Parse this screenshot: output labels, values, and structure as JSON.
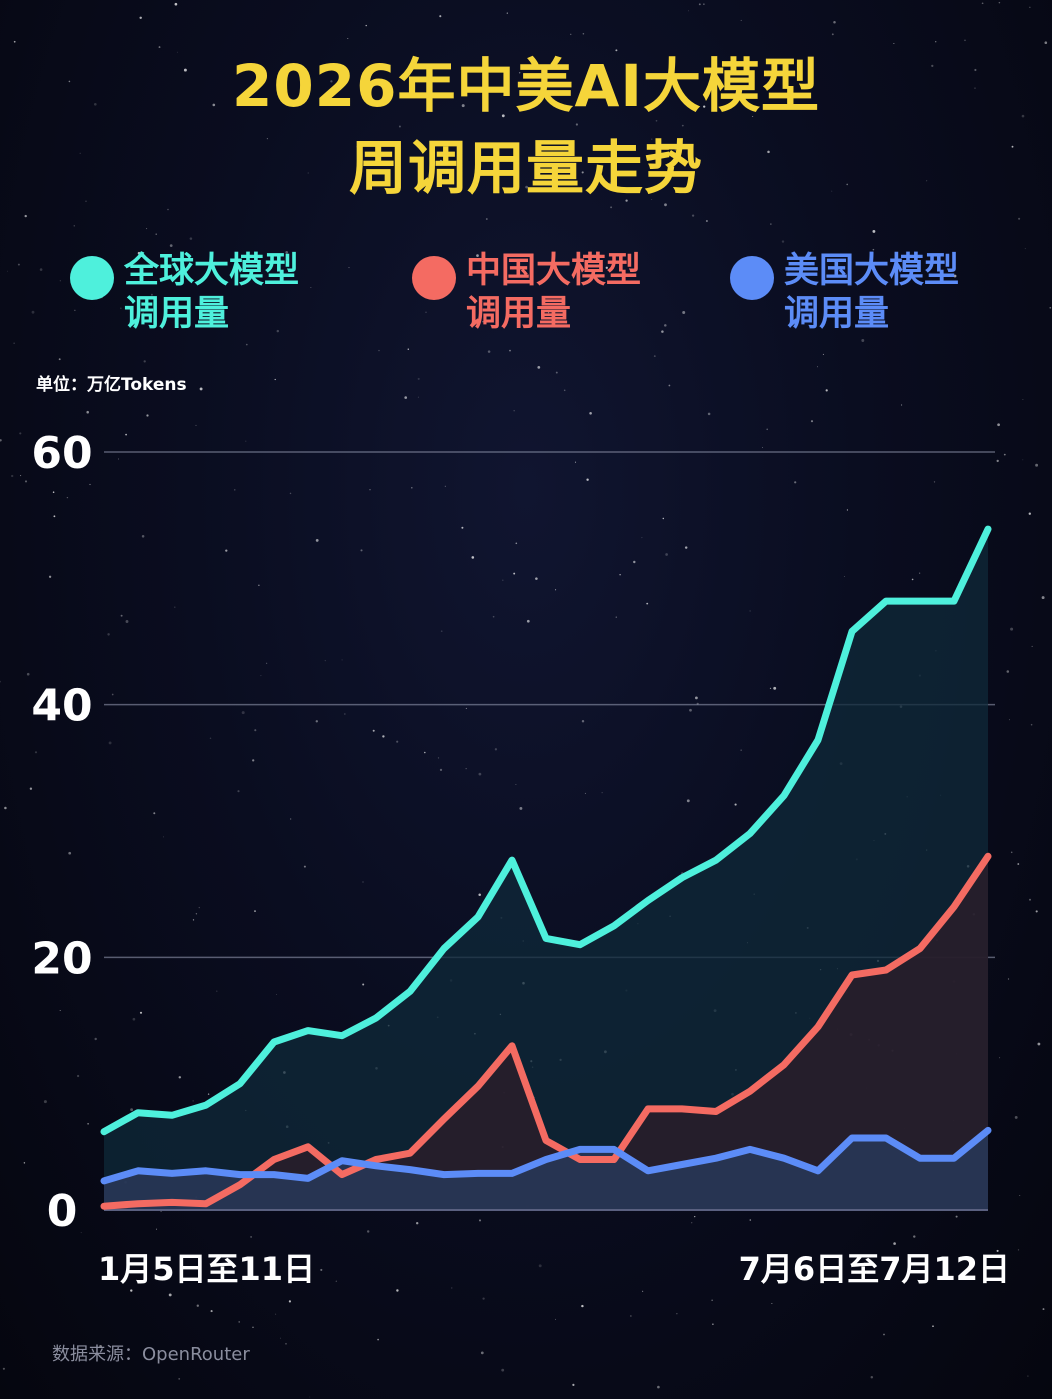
{
  "title": {
    "line1": "2026年中美AI大模型",
    "line2": "周调用量走势"
  },
  "legend": [
    {
      "line1": "全球大模型",
      "line2": "调用量",
      "color": "#4ef0dc"
    },
    {
      "line1": "中国大模型",
      "line2": "调用量",
      "color": "#f46b62"
    },
    {
      "line1": "美国大模型",
      "line2": "调用量",
      "color": "#5c8cf7"
    }
  ],
  "unit": "单位：万亿Tokens",
  "source": "数据来源：OpenRouter",
  "chart_data": {
    "type": "area",
    "ylim": [
      0,
      60
    ],
    "yticks": [
      "0",
      "20",
      "40",
      "60"
    ],
    "x_tick_labels": [
      "1月5日至11日",
      "7月6日至7月12日"
    ],
    "grid": true,
    "series": [
      {
        "name": "全球大模型调用量",
        "color": "#4ef0dc",
        "values": [
          6.2,
          7.7,
          7.5,
          8.3,
          10,
          13.3,
          14.2,
          13.8,
          15.2,
          17.3,
          20.7,
          23.2,
          27.7,
          21.5,
          21,
          22.5,
          24.5,
          26.3,
          27.7,
          29.8,
          32.8,
          37.2,
          45.8,
          48.2,
          48.2,
          48.2,
          53.9
        ]
      },
      {
        "name": "中国大模型调用量",
        "color": "#f46b62",
        "values": [
          0.3,
          0.5,
          0.6,
          0.5,
          2,
          4,
          5,
          2.8,
          4,
          4.5,
          7.2,
          9.8,
          13,
          5.5,
          4,
          4,
          8,
          8,
          7.8,
          9.4,
          11.5,
          14.5,
          18.6,
          19,
          20.7,
          24,
          28
        ]
      },
      {
        "name": "美国大模型调用量",
        "color": "#5c8cf7",
        "values": [
          2.3,
          3.1,
          2.9,
          3.1,
          2.8,
          2.8,
          2.5,
          3.9,
          3.5,
          3.2,
          2.8,
          2.9,
          2.9,
          4,
          4.8,
          4.8,
          3.1,
          3.6,
          4.1,
          4.8,
          4.1,
          3.1,
          5.7,
          5.7,
          4.1,
          4.1,
          6.3
        ]
      }
    ]
  }
}
